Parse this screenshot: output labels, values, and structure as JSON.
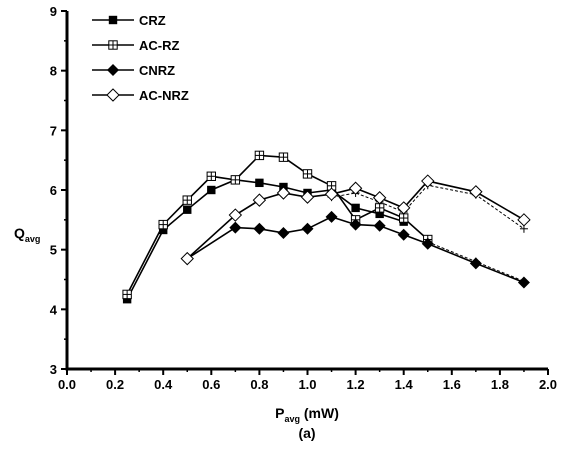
{
  "chart_data": {
    "type": "line",
    "title": "",
    "xlabel_main": "P",
    "xlabel_sub": "avg",
    "xlabel_unit": " (mW)",
    "ylabel_main": "Q",
    "ylabel_sub": "avg",
    "caption": "(a)",
    "xlim": [
      0.0,
      2.0
    ],
    "ylim": [
      3,
      9
    ],
    "xticks": [
      "0.0",
      "0.2",
      "0.4",
      "0.6",
      "0.8",
      "1.0",
      "1.2",
      "1.4",
      "1.6",
      "1.8",
      "2.0"
    ],
    "yticks": [
      "3",
      "4",
      "5",
      "6",
      "7",
      "8",
      "9"
    ],
    "grid": false,
    "legend_position": "top-left",
    "series": [
      {
        "name": "CRZ",
        "marker": "square-filled",
        "line": "solid",
        "x": [
          0.25,
          0.4,
          0.5,
          0.6,
          0.7,
          0.8,
          0.9,
          1.0,
          1.1,
          1.2,
          1.3,
          1.4
        ],
        "y": [
          4.17,
          5.33,
          5.67,
          6.0,
          6.17,
          6.12,
          6.05,
          5.95,
          6.0,
          5.7,
          5.6,
          5.47
        ]
      },
      {
        "name": "AC-RZ",
        "marker": "square-cross-open",
        "line": "solid",
        "x": [
          0.25,
          0.4,
          0.5,
          0.6,
          0.7,
          0.8,
          0.9,
          1.0,
          1.1,
          1.2,
          1.3,
          1.4,
          1.5
        ],
        "y": [
          4.25,
          5.42,
          5.83,
          6.23,
          6.17,
          6.58,
          6.55,
          6.27,
          6.07,
          5.5,
          5.7,
          5.53,
          5.17
        ]
      },
      {
        "name": "CNRZ",
        "marker": "diamond-filled",
        "line": "solid",
        "x": [
          0.5,
          0.7,
          0.8,
          0.9,
          1.0,
          1.1,
          1.2,
          1.3,
          1.4,
          1.5,
          1.7,
          1.9
        ],
        "y": [
          4.85,
          5.37,
          5.35,
          5.28,
          5.35,
          5.55,
          5.42,
          5.4,
          5.25,
          5.1,
          4.77,
          4.45
        ]
      },
      {
        "name": "AC-NRZ",
        "marker": "diamond-open",
        "line": "solid",
        "x": [
          0.5,
          0.7,
          0.8,
          0.9,
          1.0,
          1.1,
          1.2,
          1.3,
          1.4,
          1.5,
          1.7,
          1.9
        ],
        "y": [
          4.85,
          5.58,
          5.83,
          5.95,
          5.88,
          5.93,
          6.03,
          5.87,
          5.7,
          6.15,
          5.97,
          5.5
        ]
      },
      {
        "name": "",
        "marker": "plus",
        "line": "dashed",
        "x": [
          1.1,
          1.2,
          1.3,
          1.4,
          1.5,
          1.7,
          1.9
        ],
        "y": [
          5.88,
          5.95,
          5.8,
          5.63,
          6.08,
          5.92,
          5.35
        ]
      },
      {
        "name": "",
        "marker": "plus",
        "line": "dashed",
        "x": [
          1.5,
          1.7,
          1.9
        ],
        "y": [
          5.13,
          4.8,
          4.47
        ]
      }
    ]
  }
}
